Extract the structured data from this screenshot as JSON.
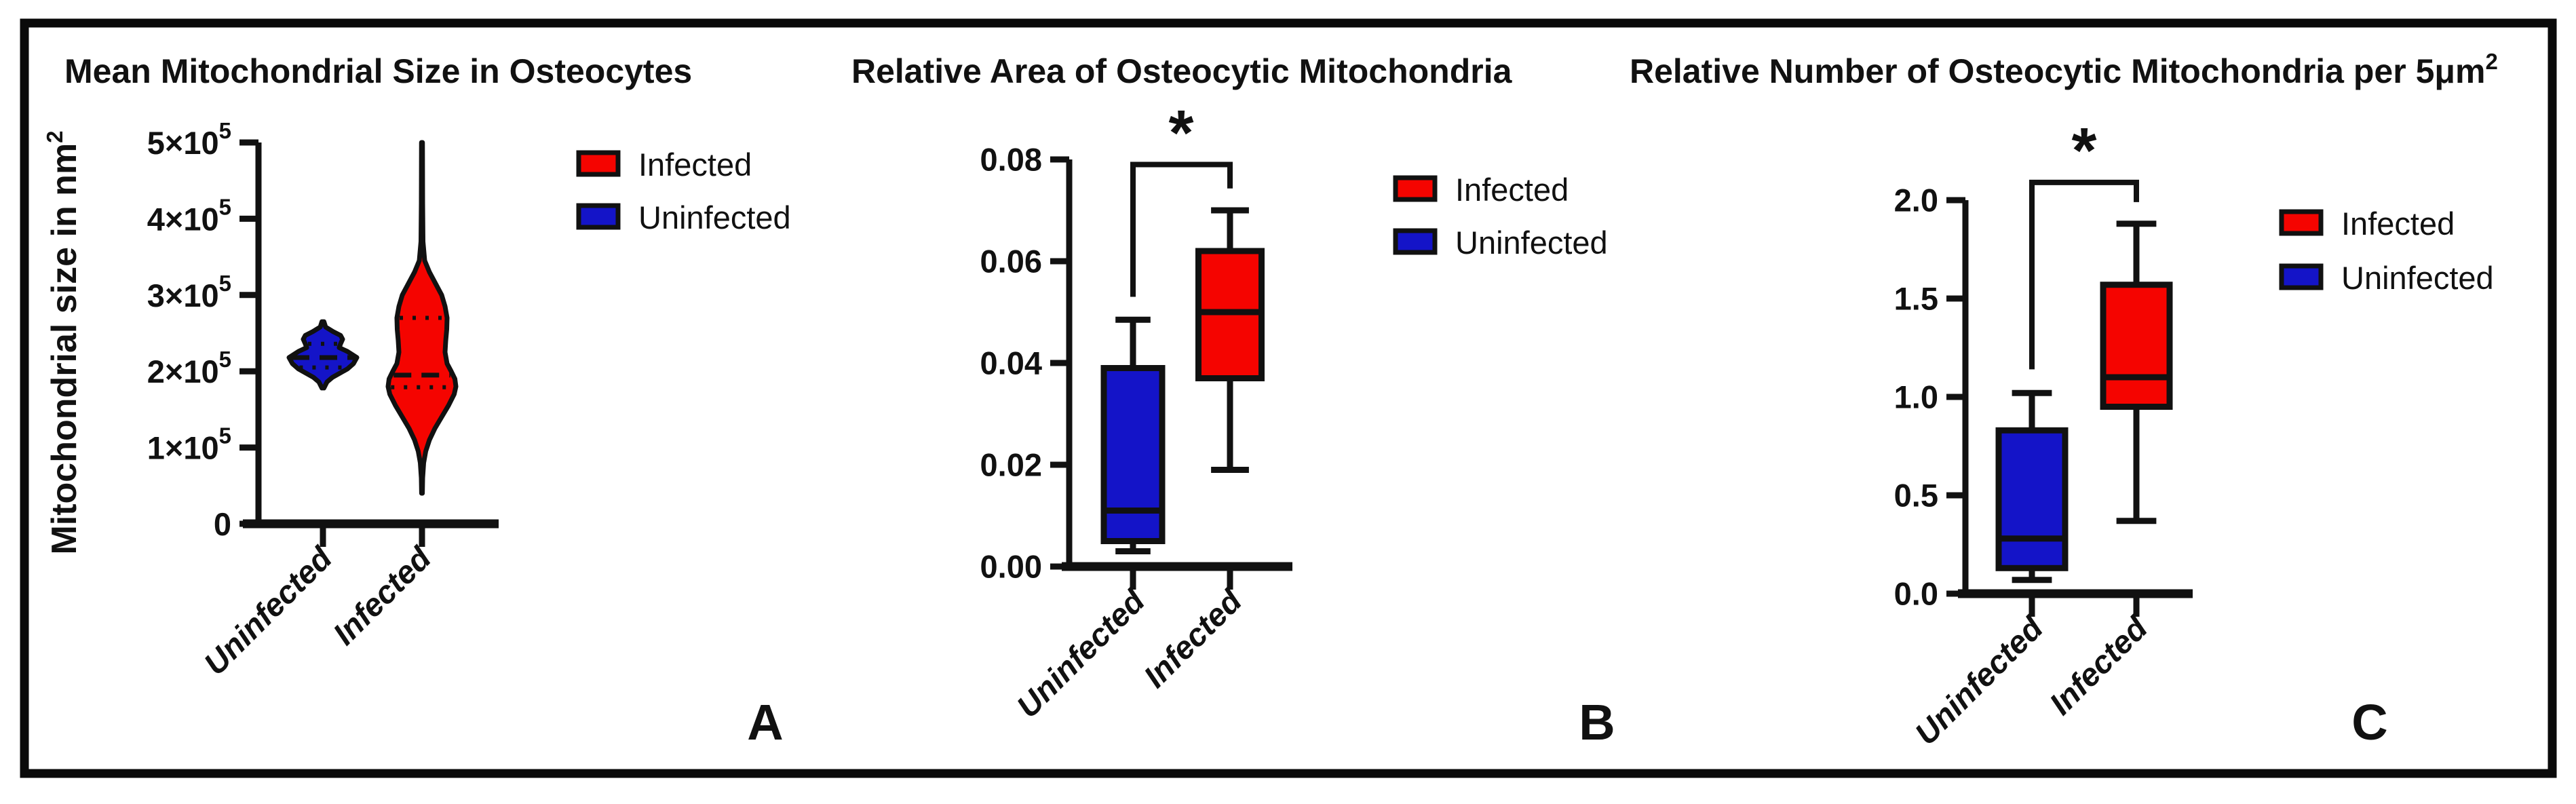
{
  "figure": {
    "background": "#ffffff",
    "border_color": "#0a0a0a",
    "colors": {
      "infected": "#f50400",
      "uninfected": "#1414c8",
      "axis": "#111111"
    },
    "legend": {
      "infected_label": "Infected",
      "uninfected_label": "Uninfected"
    },
    "panel_letters": [
      "A",
      "B",
      "C"
    ]
  },
  "chart_data": [
    {
      "type": "violin",
      "title": "Mean Mitochondrial Size in Osteocytes",
      "ylabel": {
        "base": "Mitochondrial size in nm",
        "sup": "2"
      },
      "xlabel": "",
      "categories": [
        "Uninfected",
        "Infected"
      ],
      "ylim": [
        0,
        500000
      ],
      "grid": false,
      "legend_position": "right-top",
      "yticks": [
        {
          "v": 0,
          "base": "0",
          "sup": ""
        },
        {
          "v": 100000,
          "base": "1×10",
          "sup": "5"
        },
        {
          "v": 200000,
          "base": "2×10",
          "sup": "5"
        },
        {
          "v": 300000,
          "base": "3×10",
          "sup": "5"
        },
        {
          "v": 400000,
          "base": "4×10",
          "sup": "5"
        },
        {
          "v": 500000,
          "base": "5×10",
          "sup": "5"
        }
      ],
      "series": [
        {
          "name": "Uninfected",
          "color": "uninfected",
          "min": 178000,
          "max": 265000,
          "q1": 205000,
          "median": 218000,
          "q3": 236000,
          "profile": [
            [
              265000,
              0.03
            ],
            [
              258000,
              0.08
            ],
            [
              252000,
              0.3
            ],
            [
              247000,
              0.52
            ],
            [
              242000,
              0.58
            ],
            [
              236000,
              0.52
            ],
            [
              231000,
              0.48
            ],
            [
              226000,
              0.72
            ],
            [
              218000,
              1.0
            ],
            [
              210000,
              0.9
            ],
            [
              203000,
              0.72
            ],
            [
              197000,
              0.48
            ],
            [
              192000,
              0.28
            ],
            [
              186000,
              0.12
            ],
            [
              178000,
              0.03
            ]
          ]
        },
        {
          "name": "Infected",
          "color": "infected",
          "min": 40000,
          "max": 500000,
          "q1": 179000,
          "median": 195000,
          "q3": 270000,
          "profile": [
            [
              500000,
              0.015
            ],
            [
              420000,
              0.02
            ],
            [
              370000,
              0.03
            ],
            [
              345000,
              0.08
            ],
            [
              330000,
              0.22
            ],
            [
              315000,
              0.4
            ],
            [
              300000,
              0.58
            ],
            [
              285000,
              0.68
            ],
            [
              270000,
              0.74
            ],
            [
              255000,
              0.73
            ],
            [
              240000,
              0.7
            ],
            [
              225000,
              0.68
            ],
            [
              210000,
              0.74
            ],
            [
              200000,
              0.86
            ],
            [
              190000,
              0.97
            ],
            [
              180000,
              1.0
            ],
            [
              170000,
              0.95
            ],
            [
              155000,
              0.78
            ],
            [
              140000,
              0.58
            ],
            [
              125000,
              0.38
            ],
            [
              110000,
              0.22
            ],
            [
              95000,
              0.11
            ],
            [
              80000,
              0.05
            ],
            [
              60000,
              0.02
            ],
            [
              40000,
              0.012
            ]
          ]
        }
      ]
    },
    {
      "type": "box",
      "title": "Relative Area of Osteocytic Mitochondria",
      "ylabel": null,
      "xlabel": "",
      "categories": [
        "Uninfected",
        "Infected"
      ],
      "ylim": [
        0,
        0.08
      ],
      "grid": false,
      "legend_position": "right-top",
      "yticks": [
        {
          "v": 0.0,
          "label": "0.00"
        },
        {
          "v": 0.02,
          "label": "0.02"
        },
        {
          "v": 0.04,
          "label": "0.04"
        },
        {
          "v": 0.06,
          "label": "0.06"
        },
        {
          "v": 0.08,
          "label": "0.08"
        }
      ],
      "series": [
        {
          "name": "Uninfected",
          "color": "uninfected",
          "whisker_low": 0.003,
          "q1": 0.005,
          "median": 0.011,
          "q3": 0.039,
          "whisker_high": 0.0485
        },
        {
          "name": "Infected",
          "color": "infected",
          "whisker_low": 0.019,
          "q1": 0.037,
          "median": 0.05,
          "q3": 0.062,
          "whisker_high": 0.07
        }
      ],
      "significance": {
        "label": "*",
        "bar_y": 0.079,
        "left_drop_to": 0.053,
        "right_drop_to": 0.0743
      }
    },
    {
      "type": "box",
      "title": {
        "base": "Relative Number of Osteocytic Mitochondria per 5μm",
        "sup": "2"
      },
      "ylabel": null,
      "xlabel": "",
      "categories": [
        "Uninfected",
        "Infected"
      ],
      "ylim": [
        0,
        2.0
      ],
      "grid": false,
      "legend_position": "right-top",
      "yticks": [
        {
          "v": 0.0,
          "label": "0.0"
        },
        {
          "v": 0.5,
          "label": "0.5"
        },
        {
          "v": 1.0,
          "label": "1.0"
        },
        {
          "v": 1.5,
          "label": "1.5"
        },
        {
          "v": 2.0,
          "label": "2.0"
        }
      ],
      "series": [
        {
          "name": "Uninfected",
          "color": "uninfected",
          "whisker_low": 0.07,
          "q1": 0.13,
          "median": 0.28,
          "q3": 0.83,
          "whisker_high": 1.02
        },
        {
          "name": "Infected",
          "color": "infected",
          "whisker_low": 0.37,
          "q1": 0.95,
          "median": 1.1,
          "q3": 1.57,
          "whisker_high": 1.88
        }
      ],
      "significance": {
        "label": "*",
        "bar_y": 2.09,
        "left_drop_to": 1.14,
        "right_drop_to": 1.99
      }
    }
  ]
}
